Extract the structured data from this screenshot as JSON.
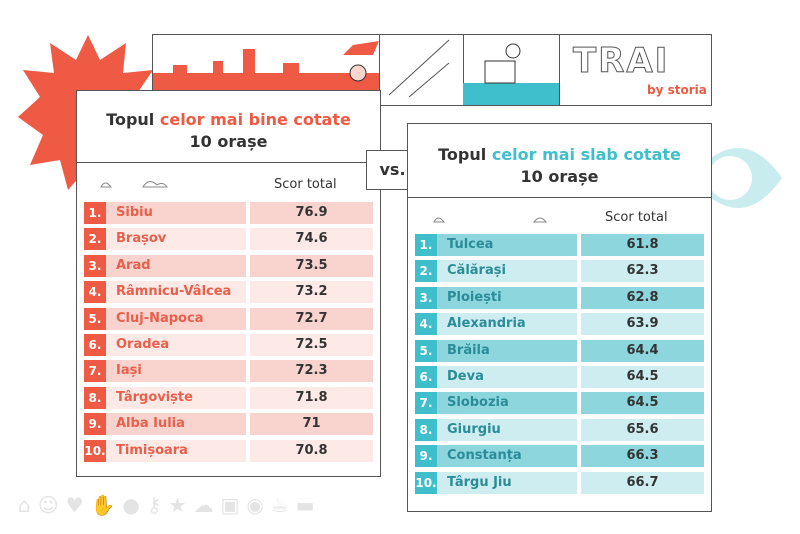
{
  "banner": {
    "logo_text": "TRAI",
    "logo_sub": "by storia"
  },
  "vs_label": "vs.",
  "best": {
    "title_pre": "Topul ",
    "title_accent": "celor mai bine cotate",
    "title_line2": "10 orașe",
    "score_header": "Scor total",
    "accent": "#ef5a44",
    "rows": [
      {
        "rank": "1.",
        "city": "Sibiu",
        "score": "76.9"
      },
      {
        "rank": "2.",
        "city": "Brașov",
        "score": "74.6"
      },
      {
        "rank": "3.",
        "city": "Arad",
        "score": "73.5"
      },
      {
        "rank": "4.",
        "city": "Râmnicu-Vâlcea",
        "score": "73.2"
      },
      {
        "rank": "5.",
        "city": "Cluj-Napoca",
        "score": "72.7"
      },
      {
        "rank": "6.",
        "city": "Oradea",
        "score": "72.5"
      },
      {
        "rank": "7.",
        "city": "Iași",
        "score": "72.3"
      },
      {
        "rank": "8.",
        "city": "Târgoviște",
        "score": "71.8"
      },
      {
        "rank": "9.",
        "city": "Alba Iulia",
        "score": "71"
      },
      {
        "rank": "10.",
        "city": "Timișoara",
        "score": "70.8"
      }
    ]
  },
  "worst": {
    "title_pre": "Topul ",
    "title_accent": "celor mai slab cotate",
    "title_line2": "10 orașe",
    "score_header": "Scor total",
    "accent": "#3fbfcc",
    "rows": [
      {
        "rank": "1.",
        "city": "Tulcea",
        "score": "61.8"
      },
      {
        "rank": "2.",
        "city": "Călărași",
        "score": "62.3"
      },
      {
        "rank": "3.",
        "city": "Ploiești",
        "score": "62.8"
      },
      {
        "rank": "4.",
        "city": "Alexandria",
        "score": "63.9"
      },
      {
        "rank": "5.",
        "city": "Brăila",
        "score": "64.4"
      },
      {
        "rank": "6.",
        "city": "Deva",
        "score": "64.5"
      },
      {
        "rank": "7.",
        "city": "Slobozia",
        "score": "64.5"
      },
      {
        "rank": "8.",
        "city": "Giurgiu",
        "score": "65.6"
      },
      {
        "rank": "9.",
        "city": "Constanța",
        "score": "66.3"
      },
      {
        "rank": "10.",
        "city": "Târgu Jiu",
        "score": "66.7"
      }
    ]
  }
}
